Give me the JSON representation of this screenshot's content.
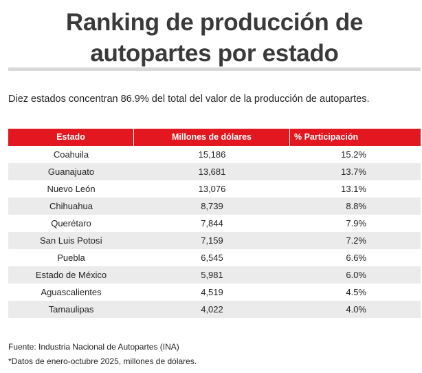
{
  "title": {
    "line1": "Ranking de producción de",
    "line2": "autopartes por estado"
  },
  "subtitle": "Diez estados concentran 86.9% del total del valor de la producción de autopartes.",
  "table": {
    "headers": [
      "Estado",
      "Millones de dólares",
      "% Participación"
    ],
    "rows": [
      [
        "Coahuila",
        "15,186",
        "15.2%"
      ],
      [
        "Guanajuato",
        "13,681",
        "13.7%"
      ],
      [
        "Nuevo León",
        "13,076",
        "13.1%"
      ],
      [
        "Chihuahua",
        "8,739",
        "8.8%"
      ],
      [
        "Querétaro",
        "7,844",
        "7.9%"
      ],
      [
        "San Luis Potosí",
        "7,159",
        "7.2%"
      ],
      [
        "Puebla",
        "6,545",
        "6.6%"
      ],
      [
        "Estado de México",
        "5,981",
        "6.0%"
      ],
      [
        "Aguascalientes",
        "4,519",
        "4.5%"
      ],
      [
        "Tamaulipas",
        "4,022",
        "4.0%"
      ]
    ]
  },
  "footer": {
    "source": "Fuente: Industria Nacional de Autopartes (INA)",
    "note": "*Datos de enero-octubre 2025, millones de dólares."
  },
  "colors": {
    "header_bg": "#e3171f",
    "stripe_bg": "#ebebeb",
    "title_color": "#3a3a3a"
  }
}
